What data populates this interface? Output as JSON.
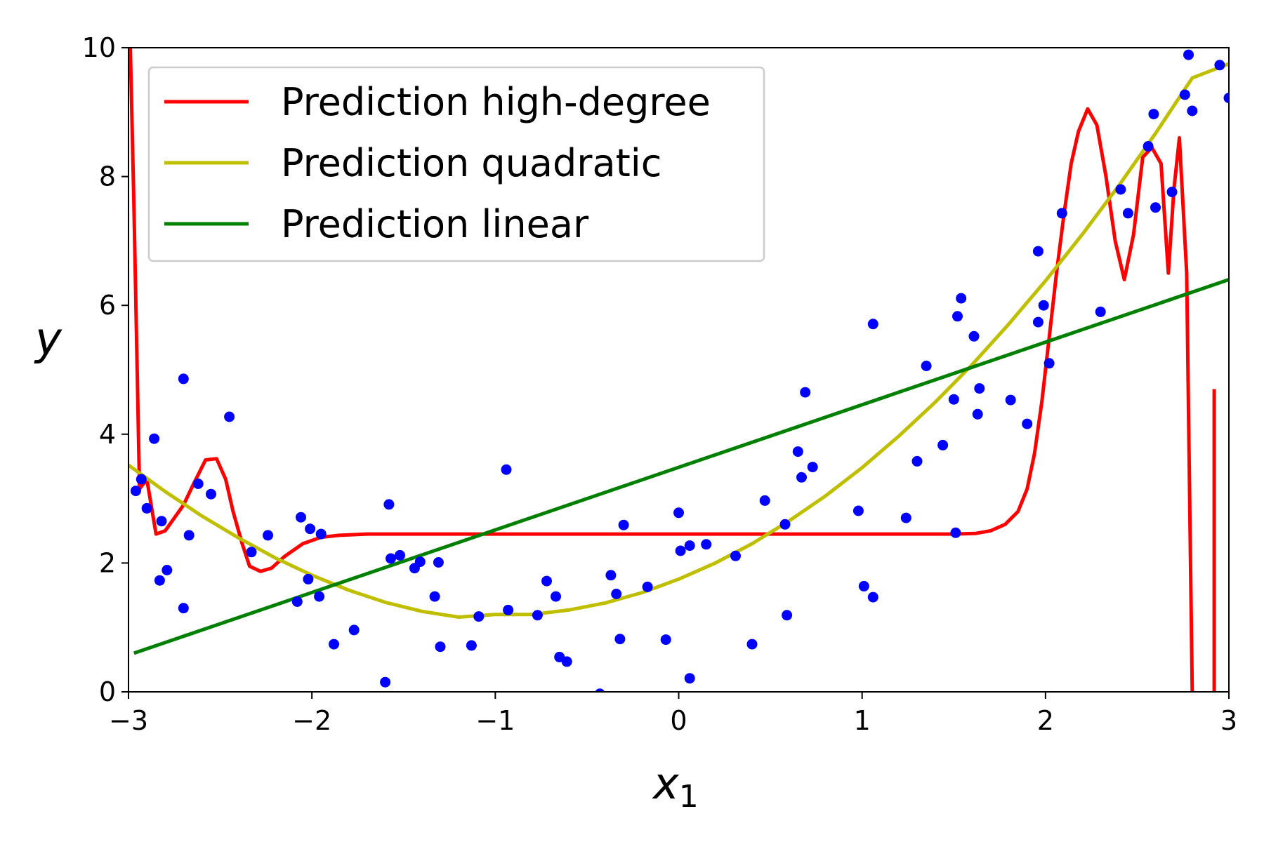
{
  "chart_data": {
    "type": "line",
    "title": "",
    "xlabel": "x",
    "xlabel_subscript": "1",
    "ylabel": "y",
    "xlim": [
      -3,
      3
    ],
    "ylim": [
      0,
      10
    ],
    "xticks": [
      -3,
      -2,
      -1,
      0,
      1,
      2,
      3
    ],
    "xtick_labels": [
      "−3",
      "−2",
      "−1",
      "0",
      "1",
      "2",
      "3"
    ],
    "yticks": [
      0,
      2,
      4,
      6,
      8,
      10
    ],
    "ytick_labels": [
      "0",
      "2",
      "4",
      "6",
      "8",
      "10"
    ],
    "grid": false,
    "legend_position": "upper-left",
    "series": [
      {
        "name": "Prediction high-degree",
        "color": "#ff0000",
        "style": "line",
        "segments": [
          [
            [
              -2.99,
              10.0
            ],
            [
              -2.97,
              7.5
            ],
            [
              -2.94,
              3.15
            ],
            [
              -2.9,
              3.3
            ],
            [
              -2.85,
              2.45
            ],
            [
              -2.8,
              2.5
            ],
            [
              -2.75,
              2.7
            ],
            [
              -2.7,
              2.9
            ],
            [
              -2.65,
              3.2
            ],
            [
              -2.58,
              3.6
            ],
            [
              -2.52,
              3.62
            ],
            [
              -2.47,
              3.3
            ],
            [
              -2.43,
              2.8
            ],
            [
              -2.38,
              2.3
            ],
            [
              -2.34,
              1.95
            ],
            [
              -2.28,
              1.87
            ],
            [
              -2.22,
              1.92
            ],
            [
              -2.15,
              2.1
            ],
            [
              -2.05,
              2.3
            ],
            [
              -1.95,
              2.4
            ],
            [
              -1.85,
              2.43
            ],
            [
              -1.7,
              2.45
            ],
            [
              -1.5,
              2.45
            ],
            [
              -1.0,
              2.45
            ],
            [
              0.0,
              2.45
            ],
            [
              1.0,
              2.45
            ],
            [
              1.5,
              2.45
            ],
            [
              1.62,
              2.46
            ],
            [
              1.7,
              2.5
            ],
            [
              1.78,
              2.6
            ],
            [
              1.85,
              2.8
            ],
            [
              1.9,
              3.15
            ],
            [
              1.94,
              3.7
            ],
            [
              1.98,
              4.5
            ],
            [
              2.02,
              5.5
            ],
            [
              2.06,
              6.5
            ],
            [
              2.1,
              7.4
            ],
            [
              2.14,
              8.2
            ],
            [
              2.18,
              8.7
            ],
            [
              2.23,
              9.05
            ],
            [
              2.28,
              8.8
            ],
            [
              2.33,
              8.0
            ],
            [
              2.38,
              7.0
            ],
            [
              2.43,
              6.4
            ],
            [
              2.48,
              7.1
            ],
            [
              2.53,
              8.3
            ],
            [
              2.58,
              8.45
            ],
            [
              2.63,
              8.2
            ],
            [
              2.67,
              6.5
            ],
            [
              2.7,
              7.8
            ],
            [
              2.73,
              8.6
            ],
            [
              2.77,
              6.5
            ],
            [
              2.8,
              0.0
            ]
          ],
          [
            [
              2.92,
              0.0
            ],
            [
              2.92,
              4.7
            ]
          ]
        ]
      },
      {
        "name": "Prediction quadratic",
        "color": "#bfbf00",
        "style": "line",
        "points": [
          [
            -3.0,
            3.52
          ],
          [
            -2.8,
            3.11
          ],
          [
            -2.6,
            2.73
          ],
          [
            -2.4,
            2.39
          ],
          [
            -2.2,
            2.08
          ],
          [
            -2.0,
            1.81
          ],
          [
            -1.8,
            1.58
          ],
          [
            -1.6,
            1.39
          ],
          [
            -1.4,
            1.25
          ],
          [
            -1.2,
            1.16
          ],
          [
            -1.0,
            1.2
          ],
          [
            -0.8,
            1.2
          ],
          [
            -0.6,
            1.27
          ],
          [
            -0.4,
            1.38
          ],
          [
            -0.2,
            1.54
          ],
          [
            0.0,
            1.75
          ],
          [
            0.2,
            2.0
          ],
          [
            0.4,
            2.3
          ],
          [
            0.6,
            2.65
          ],
          [
            0.8,
            3.04
          ],
          [
            1.0,
            3.48
          ],
          [
            1.2,
            3.97
          ],
          [
            1.4,
            4.5
          ],
          [
            1.6,
            5.08
          ],
          [
            1.8,
            5.71
          ],
          [
            2.0,
            6.38
          ],
          [
            2.2,
            7.1
          ],
          [
            2.4,
            7.86
          ],
          [
            2.6,
            8.67
          ],
          [
            2.8,
            9.53
          ],
          [
            3.0,
            9.75
          ]
        ]
      },
      {
        "name": "Prediction linear",
        "color": "#008000",
        "style": "line",
        "points": [
          [
            -2.97,
            0.6
          ],
          [
            3.0,
            6.4
          ]
        ]
      },
      {
        "name": "",
        "color": "#0000ff",
        "style": "scatter",
        "points": [
          [
            -2.96,
            3.12
          ],
          [
            -2.93,
            3.3
          ],
          [
            -2.9,
            2.85
          ],
          [
            -2.86,
            3.93
          ],
          [
            -2.83,
            1.73
          ],
          [
            -2.82,
            2.65
          ],
          [
            -2.79,
            1.89
          ],
          [
            -2.7,
            1.3
          ],
          [
            -2.7,
            4.86
          ],
          [
            -2.67,
            2.43
          ],
          [
            -2.62,
            3.23
          ],
          [
            -2.55,
            3.07
          ],
          [
            -2.45,
            4.27
          ],
          [
            -2.33,
            2.17
          ],
          [
            -2.24,
            2.43
          ],
          [
            -2.08,
            1.4
          ],
          [
            -2.06,
            2.71
          ],
          [
            -2.01,
            2.53
          ],
          [
            -2.02,
            1.75
          ],
          [
            -1.96,
            1.48
          ],
          [
            -1.95,
            2.45
          ],
          [
            -1.88,
            0.74
          ],
          [
            -1.77,
            0.96
          ],
          [
            -1.6,
            0.15
          ],
          [
            -1.58,
            2.91
          ],
          [
            -1.57,
            2.07
          ],
          [
            -1.52,
            2.12
          ],
          [
            -1.44,
            1.92
          ],
          [
            -1.41,
            2.02
          ],
          [
            -1.33,
            1.48
          ],
          [
            -1.31,
            2.01
          ],
          [
            -1.3,
            0.7
          ],
          [
            -1.13,
            0.72
          ],
          [
            -1.09,
            1.17
          ],
          [
            -0.94,
            3.45
          ],
          [
            -0.93,
            1.27
          ],
          [
            -0.77,
            1.19
          ],
          [
            -0.72,
            1.72
          ],
          [
            -0.67,
            1.48
          ],
          [
            -0.65,
            0.54
          ],
          [
            -0.61,
            0.47
          ],
          [
            -0.43,
            -0.03
          ],
          [
            -0.37,
            1.81
          ],
          [
            -0.34,
            1.52
          ],
          [
            -0.32,
            0.82
          ],
          [
            -0.3,
            2.59
          ],
          [
            -0.17,
            1.63
          ],
          [
            -0.07,
            0.81
          ],
          [
            0.0,
            2.78
          ],
          [
            0.01,
            2.19
          ],
          [
            0.06,
            2.27
          ],
          [
            0.06,
            0.21
          ],
          [
            0.15,
            2.29
          ],
          [
            0.31,
            2.11
          ],
          [
            0.4,
            0.74
          ],
          [
            0.47,
            2.97
          ],
          [
            0.58,
            2.6
          ],
          [
            0.59,
            1.19
          ],
          [
            0.65,
            3.73
          ],
          [
            0.67,
            3.33
          ],
          [
            0.69,
            4.65
          ],
          [
            0.73,
            3.49
          ],
          [
            0.98,
            2.81
          ],
          [
            1.01,
            1.64
          ],
          [
            1.06,
            1.47
          ],
          [
            1.06,
            5.71
          ],
          [
            1.24,
            2.7
          ],
          [
            1.3,
            3.58
          ],
          [
            1.35,
            5.06
          ],
          [
            1.44,
            3.83
          ],
          [
            1.5,
            4.54
          ],
          [
            1.51,
            2.47
          ],
          [
            1.52,
            5.83
          ],
          [
            1.54,
            6.11
          ],
          [
            1.61,
            5.52
          ],
          [
            1.63,
            4.31
          ],
          [
            1.64,
            4.71
          ],
          [
            1.81,
            4.53
          ],
          [
            1.9,
            4.16
          ],
          [
            1.96,
            6.84
          ],
          [
            1.96,
            5.74
          ],
          [
            1.99,
            6.0
          ],
          [
            2.02,
            5.1
          ],
          [
            2.09,
            7.43
          ],
          [
            2.3,
            5.9
          ],
          [
            2.41,
            7.8
          ],
          [
            2.45,
            7.43
          ],
          [
            2.56,
            8.47
          ],
          [
            2.59,
            8.97
          ],
          [
            2.6,
            7.52
          ],
          [
            2.69,
            7.76
          ],
          [
            2.76,
            9.27
          ],
          [
            2.78,
            9.89
          ],
          [
            2.8,
            9.02
          ],
          [
            2.95,
            9.73
          ],
          [
            3.0,
            9.22
          ]
        ]
      }
    ]
  }
}
